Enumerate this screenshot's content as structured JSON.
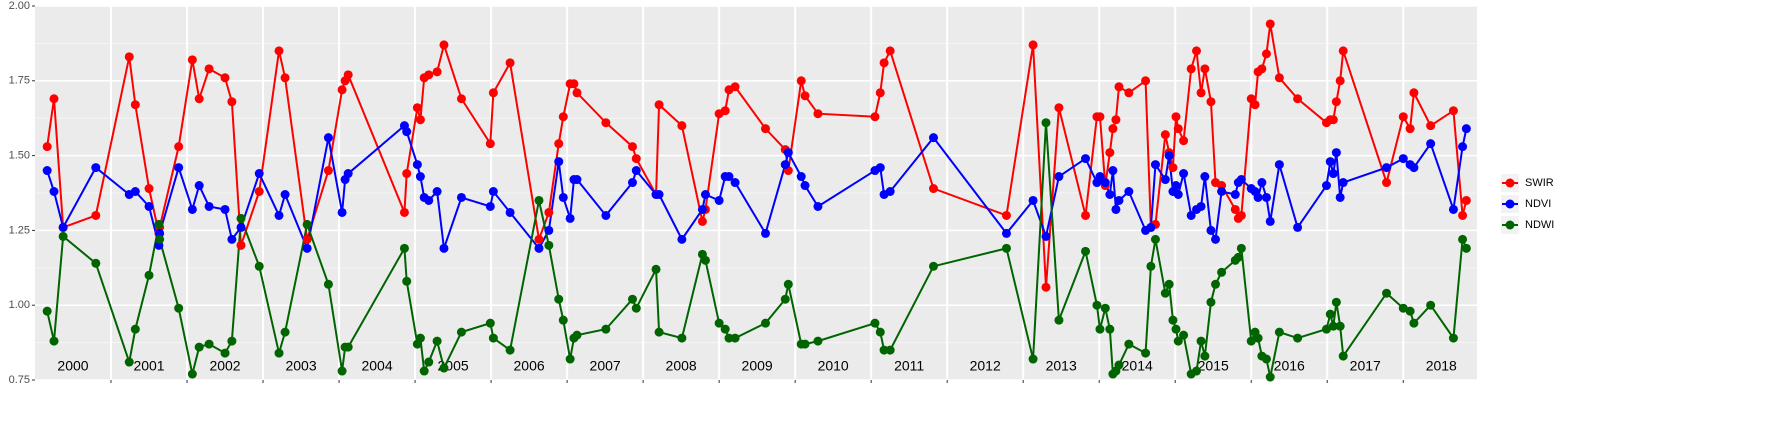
{
  "chart_data": {
    "type": "line",
    "x": [
      2000.16,
      2000.25,
      2000.37,
      2000.8,
      2001.24,
      2001.32,
      2001.5,
      2001.63,
      2001.64,
      2001.89,
      2002.07,
      2002.16,
      2002.29,
      2002.5,
      2002.59,
      2002.71,
      2002.95,
      2003.21,
      2003.29,
      2003.58,
      2003.86,
      2004.04,
      2004.08,
      2004.12,
      2004.86,
      2004.89,
      2005.03,
      2005.07,
      2005.12,
      2005.18,
      2005.29,
      2005.38,
      2005.61,
      2005.99,
      2006.03,
      2006.25,
      2006.63,
      2006.76,
      2006.89,
      2006.95,
      2007.04,
      2007.09,
      2007.13,
      2007.51,
      2007.86,
      2007.91,
      2008.17,
      2008.21,
      2008.51,
      2008.78,
      2008.82,
      2009.0,
      2009.08,
      2009.13,
      2009.21,
      2009.61,
      2009.87,
      2009.91,
      2010.08,
      2010.13,
      2010.3,
      2011.05,
      2011.12,
      2011.17,
      2011.25,
      2011.82,
      2012.78,
      2013.13,
      2013.3,
      2013.47,
      2013.82,
      2013.97,
      2014.01,
      2014.08,
      2014.14,
      2014.18,
      2014.22,
      2014.26,
      2014.39,
      2014.61,
      2014.68,
      2014.74,
      2014.87,
      2014.92,
      2014.97,
      2015.01,
      2015.04,
      2015.11,
      2015.21,
      2015.28,
      2015.34,
      2015.39,
      2015.47,
      2015.53,
      2015.61,
      2015.79,
      2015.83,
      2015.87,
      2016.0,
      2016.05,
      2016.09,
      2016.14,
      2016.2,
      2016.25,
      2016.37,
      2016.61,
      2016.99,
      2017.04,
      2017.08,
      2017.12,
      2017.17,
      2017.21,
      2017.78,
      2018.0,
      2018.09,
      2018.14,
      2018.36,
      2018.66,
      2018.78,
      2018.83
    ],
    "series": [
      {
        "name": "SWIR",
        "color": "#ff0000",
        "values": [
          1.53,
          1.69,
          1.26,
          1.3,
          1.83,
          1.67,
          1.39,
          1.24,
          1.26,
          1.53,
          1.82,
          1.69,
          1.79,
          1.76,
          1.68,
          1.2,
          1.38,
          1.85,
          1.76,
          1.22,
          1.45,
          1.72,
          1.75,
          1.77,
          1.31,
          1.44,
          1.66,
          1.62,
          1.76,
          1.77,
          1.78,
          1.87,
          1.69,
          1.54,
          1.71,
          1.81,
          1.22,
          1.31,
          1.54,
          1.63,
          1.74,
          1.74,
          1.71,
          1.61,
          1.53,
          1.49,
          1.37,
          1.67,
          1.6,
          1.28,
          1.32,
          1.64,
          1.65,
          1.72,
          1.73,
          1.59,
          1.52,
          1.45,
          1.75,
          1.7,
          1.64,
          1.63,
          1.71,
          1.81,
          1.85,
          1.39,
          1.3,
          1.87,
          1.06,
          1.66,
          1.3,
          1.63,
          1.63,
          1.4,
          1.51,
          1.59,
          1.62,
          1.73,
          1.71,
          1.75,
          1.26,
          1.27,
          1.57,
          1.51,
          1.46,
          1.63,
          1.59,
          1.55,
          1.79,
          1.85,
          1.71,
          1.79,
          1.68,
          1.41,
          1.4,
          1.32,
          1.29,
          1.3,
          1.69,
          1.67,
          1.78,
          1.79,
          1.84,
          1.94,
          1.76,
          1.69,
          1.61,
          1.62,
          1.62,
          1.68,
          1.75,
          1.85,
          1.41,
          1.63,
          1.59,
          1.71,
          1.6,
          1.65,
          1.3,
          1.35
        ]
      },
      {
        "name": "NDVI",
        "color": "#0000ff",
        "values": [
          1.45,
          1.38,
          1.26,
          1.46,
          1.37,
          1.38,
          1.33,
          1.2,
          1.24,
          1.46,
          1.32,
          1.4,
          1.33,
          1.32,
          1.22,
          1.26,
          1.44,
          1.3,
          1.37,
          1.19,
          1.56,
          1.31,
          1.42,
          1.44,
          1.6,
          1.58,
          1.47,
          1.43,
          1.36,
          1.35,
          1.38,
          1.19,
          1.36,
          1.33,
          1.38,
          1.31,
          1.19,
          1.25,
          1.48,
          1.36,
          1.29,
          1.42,
          1.42,
          1.3,
          1.41,
          1.45,
          1.37,
          1.37,
          1.22,
          1.32,
          1.37,
          1.35,
          1.43,
          1.43,
          1.41,
          1.24,
          1.47,
          1.51,
          1.43,
          1.4,
          1.33,
          1.45,
          1.46,
          1.37,
          1.38,
          1.56,
          1.24,
          1.35,
          1.23,
          1.43,
          1.49,
          1.41,
          1.43,
          1.41,
          1.37,
          1.45,
          1.32,
          1.35,
          1.38,
          1.25,
          1.26,
          1.47,
          1.42,
          1.5,
          1.38,
          1.4,
          1.37,
          1.44,
          1.3,
          1.32,
          1.33,
          1.43,
          1.25,
          1.22,
          1.38,
          1.37,
          1.41,
          1.42,
          1.39,
          1.38,
          1.36,
          1.41,
          1.36,
          1.28,
          1.47,
          1.26,
          1.4,
          1.48,
          1.44,
          1.51,
          1.36,
          1.41,
          1.46,
          1.49,
          1.47,
          1.46,
          1.54,
          1.32,
          1.53,
          1.59
        ]
      },
      {
        "name": "NDWI",
        "color": "#006400",
        "values": [
          0.98,
          0.88,
          1.23,
          1.14,
          0.81,
          0.92,
          1.1,
          1.27,
          1.22,
          0.99,
          0.77,
          0.86,
          0.87,
          0.84,
          0.88,
          1.29,
          1.13,
          0.84,
          0.91,
          1.27,
          1.07,
          0.78,
          0.86,
          0.86,
          1.19,
          1.08,
          0.87,
          0.89,
          0.78,
          0.81,
          0.88,
          0.79,
          0.91,
          0.94,
          0.89,
          0.85,
          1.35,
          1.2,
          1.02,
          0.95,
          0.82,
          0.89,
          0.9,
          0.92,
          1.02,
          0.99,
          1.12,
          0.91,
          0.89,
          1.17,
          1.15,
          0.94,
          0.92,
          0.89,
          0.89,
          0.94,
          1.02,
          1.07,
          0.87,
          0.87,
          0.88,
          0.94,
          0.91,
          0.85,
          0.85,
          1.13,
          1.19,
          0.82,
          1.61,
          0.95,
          1.18,
          1.0,
          0.92,
          0.99,
          0.92,
          0.77,
          0.78,
          0.8,
          0.87,
          0.84,
          1.13,
          1.22,
          1.04,
          1.07,
          0.95,
          0.92,
          0.88,
          0.9,
          0.77,
          0.78,
          0.88,
          0.83,
          1.01,
          1.07,
          1.11,
          1.15,
          1.16,
          1.19,
          0.88,
          0.91,
          0.89,
          0.83,
          0.82,
          0.76,
          0.91,
          0.89,
          0.92,
          0.97,
          0.93,
          1.01,
          0.93,
          0.83,
          1.04,
          0.99,
          0.98,
          0.94,
          1.0,
          0.89,
          1.22,
          1.19
        ]
      }
    ],
    "xlim": [
      2000,
      2018.97
    ],
    "xticks": [
      2001,
      2002,
      2003,
      2004,
      2005,
      2006,
      2007,
      2008,
      2009,
      2010,
      2011,
      2012,
      2013,
      2014,
      2015,
      2016,
      2017,
      2018
    ],
    "ylim": [
      0.75,
      2.0
    ],
    "yticks": [
      0.75,
      {
        "value": 1.0,
        "label": "1.00"
      },
      1.25,
      {
        "value": 1.5,
        "label": "1.50"
      },
      1.75,
      {
        "value": 2.0,
        "label": "2.00"
      }
    ],
    "year_labels": [
      "2000",
      "2001",
      "2002",
      "2003",
      "2004",
      "2005",
      "2006",
      "2007",
      "2008",
      "2009",
      "2010",
      "2011",
      "2012",
      "2013",
      "2014",
      "2015",
      "2016",
      "2017",
      "2018"
    ],
    "grid": true,
    "legend": "right"
  }
}
